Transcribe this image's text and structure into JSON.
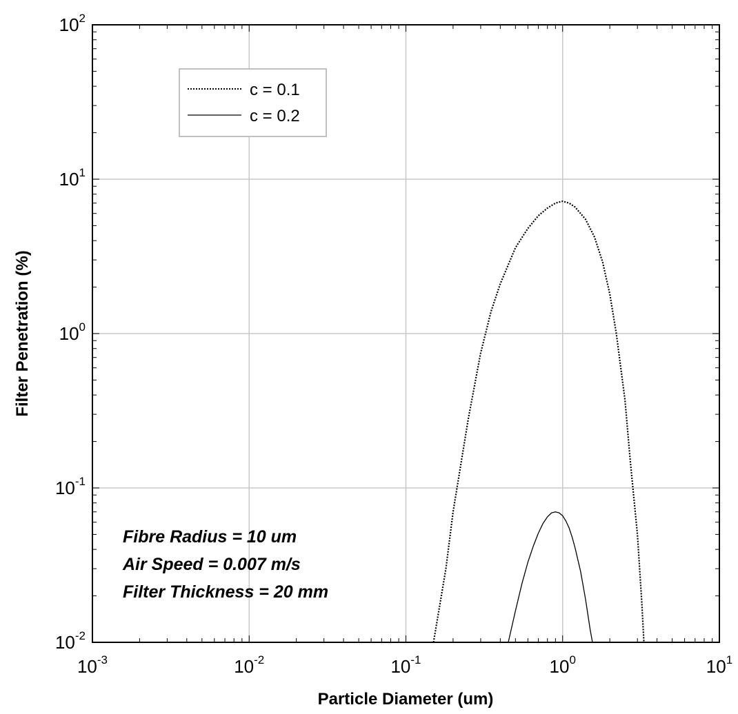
{
  "chart_data": {
    "type": "line",
    "xlabel": "Particle Diameter (um)",
    "ylabel": "Filter Penetration (%)",
    "x_scale": "log",
    "y_scale": "log",
    "xlim": [
      0.001,
      10
    ],
    "ylim": [
      0.01,
      100
    ],
    "x_ticks": [
      {
        "value": 0.001,
        "base": "10",
        "exp": "-3"
      },
      {
        "value": 0.01,
        "base": "10",
        "exp": "-2"
      },
      {
        "value": 0.1,
        "base": "10",
        "exp": "-1"
      },
      {
        "value": 1,
        "base": "10",
        "exp": "0"
      },
      {
        "value": 10,
        "base": "10",
        "exp": "1"
      }
    ],
    "y_ticks": [
      {
        "value": 0.01,
        "base": "10",
        "exp": "-2"
      },
      {
        "value": 0.1,
        "base": "10",
        "exp": "-1"
      },
      {
        "value": 1,
        "base": "10",
        "exp": "0"
      },
      {
        "value": 10,
        "base": "10",
        "exp": "1"
      },
      {
        "value": 100,
        "base": "10",
        "exp": "2"
      }
    ],
    "grid": true,
    "legend_position": "top-left",
    "series": [
      {
        "name": "c = 0.1",
        "style": "dotted",
        "color": "#000000",
        "x": [
          0.15,
          0.18,
          0.2,
          0.25,
          0.3,
          0.35,
          0.4,
          0.5,
          0.6,
          0.7,
          0.8,
          0.9,
          1.0,
          1.1,
          1.2,
          1.4,
          1.6,
          1.8,
          2.0,
          2.2,
          2.5,
          2.7,
          3.0,
          3.2,
          3.3
        ],
        "y": [
          0.01,
          0.03,
          0.07,
          0.28,
          0.75,
          1.4,
          2.1,
          3.6,
          4.8,
          5.8,
          6.5,
          7.0,
          7.2,
          7.0,
          6.6,
          5.5,
          4.2,
          2.9,
          1.8,
          1.0,
          0.37,
          0.15,
          0.05,
          0.018,
          0.01
        ]
      },
      {
        "name": "c = 0.2",
        "style": "solid",
        "color": "#000000",
        "x": [
          0.45,
          0.5,
          0.55,
          0.6,
          0.65,
          0.7,
          0.75,
          0.8,
          0.85,
          0.9,
          0.95,
          1.0,
          1.05,
          1.1,
          1.15,
          1.2,
          1.3,
          1.4,
          1.5,
          1.55
        ],
        "y": [
          0.01,
          0.016,
          0.024,
          0.033,
          0.042,
          0.051,
          0.059,
          0.065,
          0.069,
          0.07,
          0.069,
          0.066,
          0.061,
          0.055,
          0.048,
          0.041,
          0.029,
          0.019,
          0.012,
          0.01
        ]
      }
    ],
    "annotations": [
      "Fibre Radius = 10 um",
      "Air Speed = 0.007 m/s",
      "Filter Thickness = 20 mm"
    ]
  }
}
